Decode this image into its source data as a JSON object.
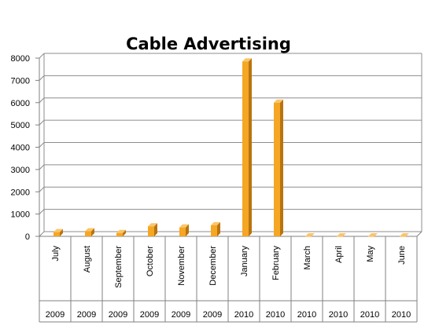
{
  "chart_data": {
    "type": "bar",
    "title": "Cable Advertising",
    "xlabel": "",
    "ylabel": "",
    "ylim": [
      0,
      8000
    ],
    "yticks": [
      0,
      1000,
      2000,
      3000,
      4000,
      5000,
      6000,
      7000,
      8000
    ],
    "grid": true,
    "legend": "none",
    "categories": [
      "July",
      "August",
      "September",
      "October",
      "November",
      "December",
      "January",
      "February",
      "March",
      "April",
      "May",
      "June"
    ],
    "years": [
      "2009",
      "2009",
      "2009",
      "2009",
      "2009",
      "2009",
      "2010",
      "2010",
      "2010",
      "2010",
      "2010",
      "2010"
    ],
    "values": [
      190,
      230,
      150,
      450,
      400,
      500,
      7850,
      6000,
      0,
      0,
      0,
      0
    ],
    "colors": {
      "bar_front": "#F5A623",
      "bar_side": "#B8740F",
      "bar_top": "#FAC56A",
      "grid": "#8C8C8C",
      "axis": "#808080"
    }
  }
}
